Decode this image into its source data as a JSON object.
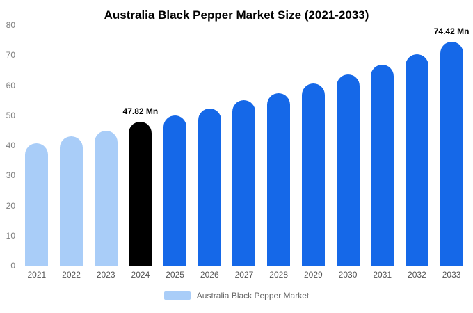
{
  "title": "Australia Black Pepper Market Size (2021-2033)",
  "colors": {
    "historical": "#a9cdf8",
    "highlight": "#000000",
    "forecast": "#1568e8",
    "axis_text": "#808080",
    "x_text": "#555555"
  },
  "legend": {
    "label": "Australia Black Pepper Market",
    "swatch_color": "#a9cdf8"
  },
  "chart_data": {
    "type": "bar",
    "title": "Australia Black Pepper Market Size (2021-2033)",
    "xlabel": "",
    "ylabel": "",
    "ylim": [
      0,
      80
    ],
    "yticks": [
      0,
      10,
      20,
      30,
      40,
      50,
      60,
      70,
      80
    ],
    "grid": false,
    "legend_position": "bottom",
    "categories": [
      "2021",
      "2022",
      "2023",
      "2024",
      "2025",
      "2026",
      "2027",
      "2028",
      "2029",
      "2030",
      "2031",
      "2032",
      "2033"
    ],
    "values": [
      40.6,
      42.9,
      44.8,
      47.82,
      50.0,
      52.3,
      55.0,
      57.4,
      60.6,
      63.7,
      66.8,
      70.4,
      74.42
    ],
    "bar_color_keys": [
      "historical",
      "historical",
      "historical",
      "highlight",
      "forecast",
      "forecast",
      "forecast",
      "forecast",
      "forecast",
      "forecast",
      "forecast",
      "forecast",
      "forecast"
    ],
    "data_labels": {
      "2024": "47.82 Mn",
      "2033": "74.42 Mn"
    },
    "series_name": "Australia Black Pepper Market"
  }
}
